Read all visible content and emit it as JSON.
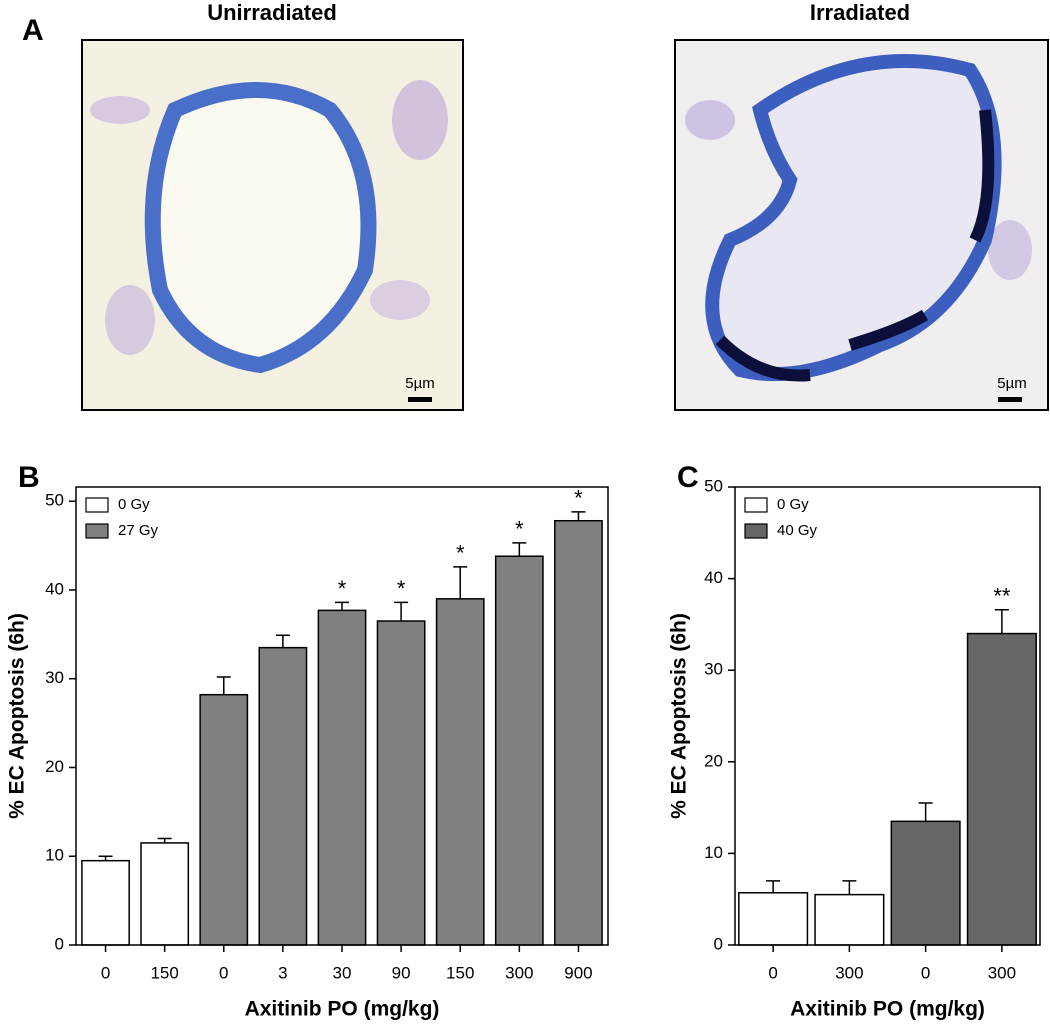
{
  "panel_a": {
    "label": "A",
    "images": [
      {
        "title": "Unirradiated",
        "scale_bar": "5µm"
      },
      {
        "title": "Irradiated",
        "scale_bar": "5µm"
      }
    ]
  },
  "chart_data": [
    {
      "type": "bar",
      "panel_label": "B",
      "x_label": "Axitinib PO (mg/kg)",
      "y_label": "% EC Apoptosis (6h)",
      "categories": [
        "0",
        "150",
        "0",
        "3",
        "30",
        "90",
        "150",
        "300",
        "900"
      ],
      "series": [
        {
          "name": "0 Gy",
          "color": "#ffffff",
          "values": [
            9.5,
            11.5,
            null,
            null,
            null,
            null,
            null,
            null,
            null
          ],
          "errors": [
            0.5,
            0.5,
            null,
            null,
            null,
            null,
            null,
            null,
            null
          ]
        },
        {
          "name": "27 Gy",
          "color": "#808080",
          "values": [
            null,
            null,
            28.2,
            33.5,
            37.7,
            36.5,
            39,
            43.8,
            47.8
          ],
          "errors": [
            null,
            null,
            2,
            1.4,
            0.9,
            2.1,
            3.6,
            1.5,
            1
          ]
        }
      ],
      "significance": [
        null,
        null,
        null,
        null,
        "*",
        "*",
        "*",
        "*",
        "*"
      ],
      "ylim": [
        0,
        51.6
      ],
      "yticks": [
        0,
        10,
        20,
        30,
        40,
        50
      ],
      "legend": "upper left"
    },
    {
      "type": "bar",
      "panel_label": "C",
      "x_label": "Axitinib PO (mg/kg)",
      "y_label": "% EC Apoptosis (6h)",
      "categories": [
        "0",
        "300",
        "0",
        "300"
      ],
      "series": [
        {
          "name": "0 Gy",
          "color": "#ffffff",
          "values": [
            5.7,
            5.5,
            null,
            null
          ],
          "errors": [
            1.3,
            1.5,
            null,
            null
          ]
        },
        {
          "name": "40 Gy",
          "color": "#666666",
          "values": [
            null,
            null,
            13.5,
            34
          ],
          "errors": [
            null,
            null,
            2,
            2.6
          ]
        }
      ],
      "significance": [
        null,
        null,
        null,
        "**"
      ],
      "ylim": [
        0,
        50
      ],
      "yticks": [
        0,
        10,
        20,
        30,
        40,
        50
      ],
      "legend": "upper left"
    }
  ]
}
